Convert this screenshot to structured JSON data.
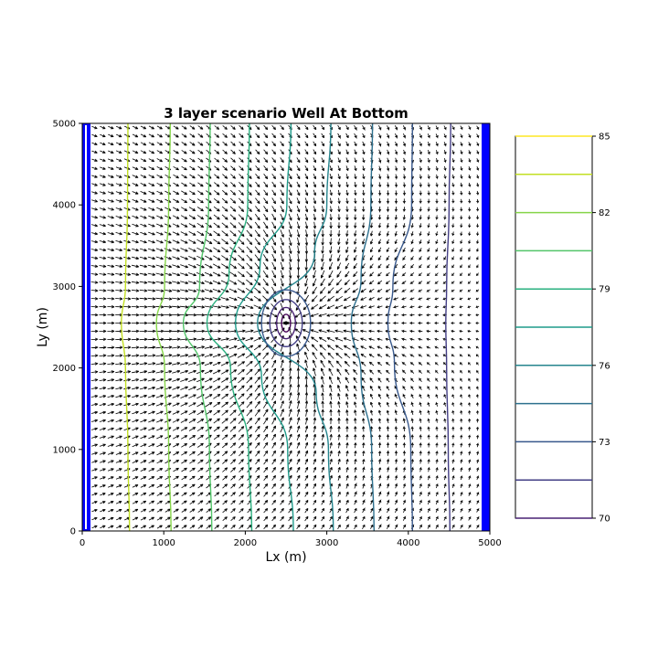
{
  "chart_data": {
    "type": "contour",
    "title": "3 layer scenario Well At Bottom",
    "xlabel": "Lx (m)",
    "ylabel": "Ly (m)",
    "xlim": [
      0,
      5000
    ],
    "ylim": [
      0,
      5000
    ],
    "x_ticks": [
      "0",
      "1000",
      "2000",
      "3000",
      "4000",
      "5000"
    ],
    "y_ticks": [
      "0",
      "1000",
      "2000",
      "3000",
      "4000",
      "5000"
    ],
    "grid": false,
    "well": {
      "x": 2500,
      "y": 2550
    },
    "boundary_color": "#0000ff",
    "contour_levels": [
      85,
      83.5,
      82,
      80.5,
      79,
      77.5,
      76,
      74.5,
      73,
      71.5,
      70
    ],
    "level_colors": [
      "#fde725",
      "#c2df23",
      "#86d549",
      "#52c569",
      "#2ab07f",
      "#1e9b8a",
      "#25858e",
      "#2d708e",
      "#38588c",
      "#433e85",
      "#482173"
    ],
    "contour_lines": [
      {
        "level": 83.5,
        "color": "#c2df23",
        "points": [
          [
            560,
            5000
          ],
          [
            555,
            4000
          ],
          [
            530,
            3000
          ],
          [
            480,
            2550
          ],
          [
            530,
            2000
          ],
          [
            560,
            1000
          ],
          [
            580,
            0
          ]
        ]
      },
      {
        "level": 82,
        "color": "#86d549",
        "points": [
          [
            1080,
            5000
          ],
          [
            1060,
            4000
          ],
          [
            1010,
            3000
          ],
          [
            910,
            2550
          ],
          [
            1010,
            2000
          ],
          [
            1060,
            1000
          ],
          [
            1090,
            0
          ]
        ]
      },
      {
        "level": 80.5,
        "color": "#52c569",
        "points": [
          [
            1570,
            5000
          ],
          [
            1550,
            4000
          ],
          [
            1440,
            3000
          ],
          [
            1240,
            2550
          ],
          [
            1450,
            2000
          ],
          [
            1560,
            1000
          ],
          [
            1590,
            0
          ]
        ]
      },
      {
        "level": 79,
        "color": "#2ab07f",
        "points": [
          [
            2050,
            5000
          ],
          [
            2030,
            4000
          ],
          [
            1800,
            3150
          ],
          [
            1530,
            2550
          ],
          [
            1820,
            2000
          ],
          [
            2040,
            1000
          ],
          [
            2080,
            0
          ]
        ]
      },
      {
        "level": 77.5,
        "color": "#1e9b8a",
        "points": [
          [
            2560,
            5000
          ],
          [
            2510,
            4000
          ],
          [
            2180,
            3250
          ],
          [
            1880,
            2550
          ],
          [
            2200,
            1900
          ],
          [
            2520,
            1000
          ],
          [
            2590,
            0
          ]
        ]
      },
      {
        "level": 76,
        "color": "#25858e",
        "points": [
          [
            3050,
            5000
          ],
          [
            3000,
            4000
          ],
          [
            2850,
            3400
          ],
          [
            2150,
            2550
          ],
          [
            2870,
            1700
          ],
          [
            3020,
            1000
          ],
          [
            3080,
            0
          ]
        ]
      },
      {
        "level": 74.5,
        "color": "#2d708e",
        "points": [
          [
            3560,
            5000
          ],
          [
            3540,
            4000
          ],
          [
            3420,
            3100
          ],
          [
            3300,
            2550
          ],
          [
            3420,
            1900
          ],
          [
            3550,
            1000
          ],
          [
            3580,
            0
          ]
        ]
      },
      {
        "level": 73,
        "color": "#38588c",
        "points": [
          [
            4050,
            5000
          ],
          [
            4040,
            4000
          ],
          [
            3810,
            3000
          ],
          [
            3750,
            2550
          ],
          [
            3830,
            2050
          ],
          [
            4030,
            1000
          ],
          [
            4050,
            0
          ]
        ]
      },
      {
        "level": 71.5,
        "color": "#433e85",
        "points": [
          [
            4520,
            5000
          ],
          [
            4500,
            4000
          ],
          [
            4470,
            3000
          ],
          [
            4460,
            2550
          ],
          [
            4470,
            2000
          ],
          [
            4490,
            1000
          ],
          [
            4510,
            0
          ]
        ]
      }
    ],
    "well_rings": [
      {
        "rx": 600,
        "ry": 340,
        "color": "#38588c"
      },
      {
        "rx": 400,
        "ry": 240,
        "color": "#433e85"
      },
      {
        "rx": 230,
        "ry": 160,
        "color": "#482173"
      },
      {
        "rx": 110,
        "ry": 90,
        "color": "#440154"
      }
    ],
    "colorbar": {
      "ticks": [
        "85",
        "82",
        "79",
        "76",
        "73",
        "70"
      ]
    }
  }
}
